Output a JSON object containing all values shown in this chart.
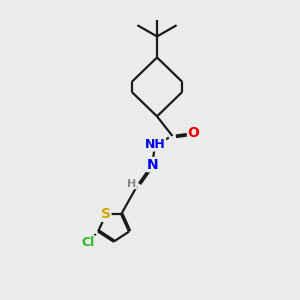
{
  "background_color": "#ebebeb",
  "bond_color": "#1a1a1a",
  "atom_colors": {
    "N": "#0000ee",
    "O": "#ee0000",
    "S": "#ccaa00",
    "Cl": "#22bb22",
    "H": "#888888"
  },
  "figsize": [
    3.0,
    3.0
  ],
  "dpi": 100,
  "lw": 1.6
}
